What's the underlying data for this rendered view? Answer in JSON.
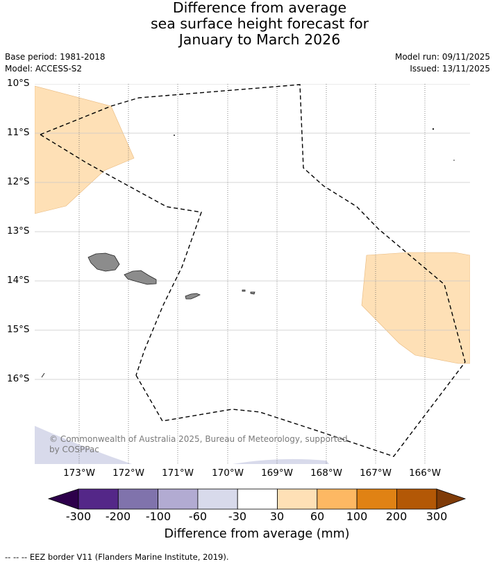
{
  "title": {
    "line1": "Difference from average",
    "line2": "sea surface height forecast for",
    "line3": "January to March 2026"
  },
  "meta": {
    "base_period": "Base period: 1981-2018",
    "model": "Model: ACCESS-S2",
    "model_run": "Model run: 09/11/2025",
    "issued": "Issued: 13/11/2025"
  },
  "axes": {
    "latitude_labels": [
      "10°S",
      "11°S",
      "12°S",
      "13°S",
      "14°S",
      "15°S",
      "16°S"
    ],
    "longitude_labels": [
      "173°W",
      "172°W",
      "171°W",
      "170°W",
      "169°W",
      "168°W",
      "167°W",
      "166°W"
    ]
  },
  "map": {
    "region": "Samoa and surrounding ocean",
    "land_color": "#8c8c8c",
    "eez_line_style": "dashed black"
  },
  "colorbar": {
    "label": "Difference from average (mm)",
    "ticks": [
      "-300",
      "-200",
      "-100",
      "-60",
      "-30",
      "30",
      "60",
      "100",
      "200",
      "300"
    ],
    "colors": [
      "#2d004b",
      "#542788",
      "#8073ac",
      "#b2abd2",
      "#d8daeb",
      "#ffffff",
      "#fee0b6",
      "#fdb863",
      "#e08214",
      "#b35806",
      "#7f3b08"
    ]
  },
  "copyright": "© Commonwealth of Australia 2025, Bureau of Meteorology, supported by COSPPac",
  "footnote": "-- -- -- EEZ border V11 (Flanders Marine Institute, 2019)."
}
